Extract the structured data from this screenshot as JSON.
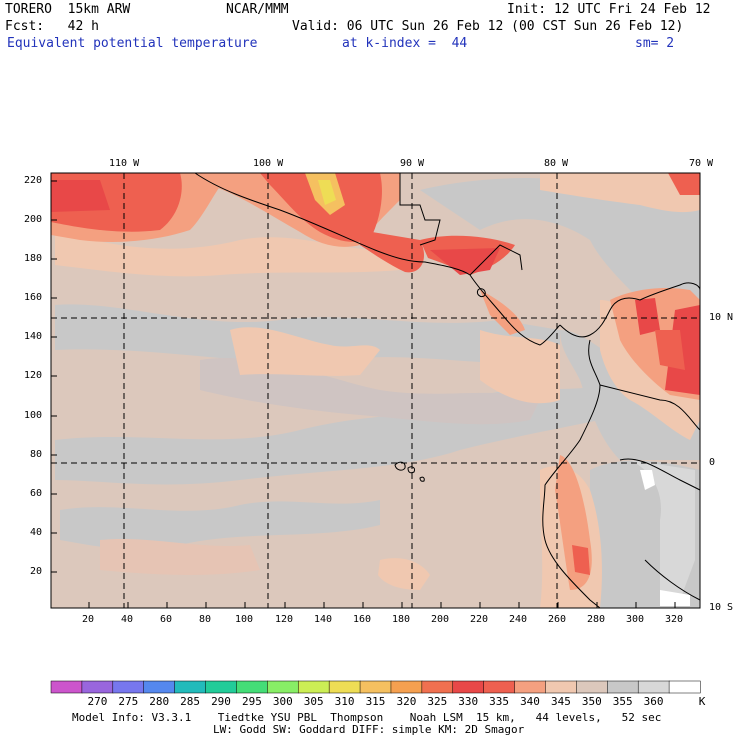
{
  "header": {
    "model": "TORERO  15km ARW",
    "org": "NCAR/MMM",
    "init": "Init: 12 UTC Fri 24 Feb 12",
    "fcst": "Fcst:   42 h",
    "valid": "Valid: 06 UTC Sun 26 Feb 12 (00 CST Sun 26 Feb 12)",
    "field": "Equivalent potential temperature",
    "level": "at k-index =  44",
    "smooth": "sm= 2"
  },
  "top_lon_labels": [
    "110 W",
    "100 W",
    "90 W",
    "80 W",
    "70 W"
  ],
  "right_lat_labels": [
    "10 N",
    "0",
    "10 S"
  ],
  "y_ticks": [
    "220",
    "200",
    "180",
    "160",
    "140",
    "120",
    "100",
    "80",
    "60",
    "40",
    "20"
  ],
  "x_ticks": [
    "20",
    "40",
    "60",
    "80",
    "100",
    "120",
    "140",
    "160",
    "180",
    "200",
    "220",
    "240",
    "260",
    "280",
    "300",
    "320"
  ],
  "colorbar": {
    "labels": [
      "270",
      "275",
      "280",
      "285",
      "290",
      "295",
      "300",
      "305",
      "310",
      "315",
      "320",
      "325",
      "330",
      "335",
      "340",
      "345",
      "350",
      "355",
      "360"
    ],
    "unit": "K",
    "colors": [
      "#cc55cc",
      "#9966dd",
      "#7777ee",
      "#5588ee",
      "#22bbbb",
      "#22cc99",
      "#44dd77",
      "#88ee66",
      "#ccee55",
      "#eedd55",
      "#f5c060",
      "#f5a050",
      "#f07050",
      "#e84848",
      "#ee6050",
      "#f4a080",
      "#f0c8b0",
      "#dcc8bc",
      "#c8c8c8",
      "#d8d8d8",
      "#ffffff"
    ]
  },
  "footer": {
    "line1": "Model Info: V3.3.1    Tiedtke YSU PBL  Thompson    Noah LSM  15 km,   44 levels,   52 sec",
    "line2": "LW: Godd SW: Goddard DIFF: simple KM: 2D Smagor"
  }
}
